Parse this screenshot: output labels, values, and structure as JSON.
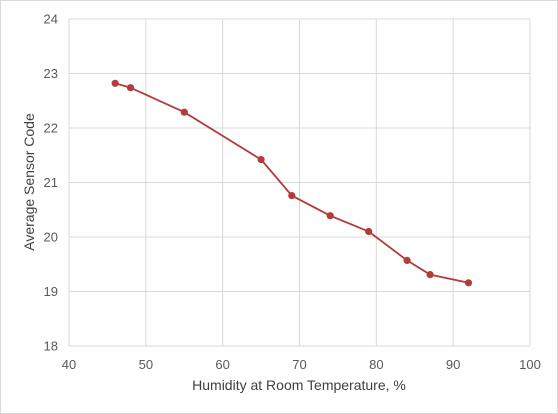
{
  "chart_data": {
    "type": "line",
    "title": "",
    "xlabel": "Humidity at Room Temperature, %",
    "ylabel": "Average Sensor Code",
    "xlim": [
      40,
      100
    ],
    "ylim": [
      18,
      24
    ],
    "xticks": [
      40,
      50,
      60,
      70,
      80,
      90,
      100
    ],
    "yticks": [
      18,
      19,
      20,
      21,
      22,
      23,
      24
    ],
    "grid": true,
    "legend": "none",
    "series_color": "#b23b3b",
    "grid_color": "#d9d9d9",
    "series": [
      {
        "x": [
          46,
          48,
          55,
          65,
          69,
          74,
          79,
          84,
          87,
          92
        ],
        "y": [
          22.82,
          22.74,
          22.29,
          21.42,
          20.76,
          20.39,
          20.1,
          19.57,
          19.31,
          19.16
        ]
      }
    ]
  }
}
